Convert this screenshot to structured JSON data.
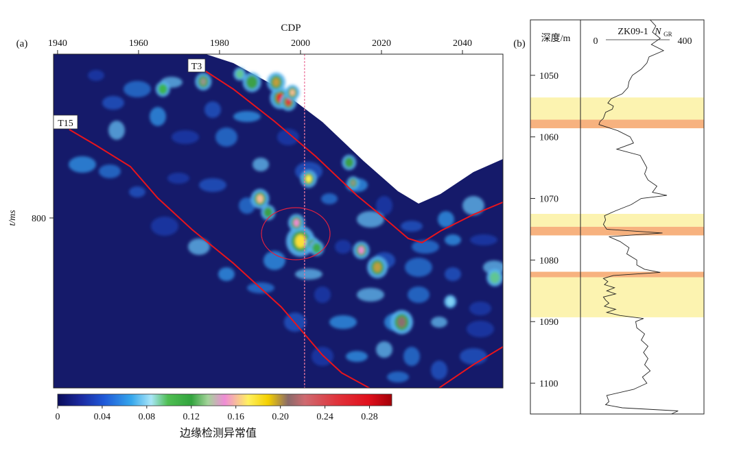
{
  "panel_a": {
    "label": "(a)",
    "top_axis_title": "CDP",
    "ylabel": "t/ms",
    "y_tick": "800",
    "colorbar_title": "边缘检测异常值",
    "horizon_labels": [
      "T3",
      "T15"
    ]
  },
  "panel_b": {
    "label": "(b)",
    "depth_label": "深度/m",
    "well_name": "ZK09-1",
    "curve_name": "N",
    "curve_sub": "GR",
    "scale_min": "0",
    "scale_max": "400"
  },
  "colors": {
    "background": "#151a6a",
    "horizon": "#e8141c",
    "marker_line": "#ec7aa0",
    "highlight_yellow": "#fcf3b0",
    "highlight_orange": "#f7b27f"
  },
  "chart_data": [
    {
      "type": "heatmap",
      "title": "",
      "xlabel": "CDP",
      "ylabel": "t/ms",
      "x_ticks": [
        1940,
        1960,
        1980,
        2000,
        2020,
        2040
      ],
      "xlim": [
        1939,
        2050
      ],
      "y_ticks": [
        800
      ],
      "marked_cdp": 2001,
      "horizons": [
        "T3",
        "T15"
      ],
      "colorbar": {
        "label": "边缘检测异常值",
        "ticks": [
          0,
          0.04,
          0.08,
          0.12,
          0.16,
          0.2,
          0.24,
          0.28
        ],
        "tick_labels": [
          "0",
          "0.04",
          "0.08",
          "0.12",
          "0.16",
          "0.20",
          "0.24",
          "0.28"
        ],
        "range": [
          0,
          0.3
        ]
      },
      "anomalies": [
        {
          "cdp": 1995,
          "v": 0.28
        },
        {
          "cdp": 1997,
          "v": 0.26
        },
        {
          "cdp": 1994,
          "v": 0.2
        },
        {
          "cdp": 1998,
          "v": 0.16
        },
        {
          "cdp": 2002,
          "v": 0.17
        },
        {
          "cdp": 2000,
          "v": 0.18
        },
        {
          "cdp": 1999,
          "v": 0.15
        },
        {
          "cdp": 2003,
          "v": 0.14
        },
        {
          "cdp": 2004,
          "v": 0.12
        },
        {
          "cdp": 1976,
          "v": 0.14
        },
        {
          "cdp": 1985,
          "v": 0.1
        },
        {
          "cdp": 1988,
          "v": 0.13
        },
        {
          "cdp": 2012,
          "v": 0.13
        },
        {
          "cdp": 2013,
          "v": 0.14
        },
        {
          "cdp": 2019,
          "v": 0.2
        },
        {
          "cdp": 2025,
          "v": 0.21
        },
        {
          "cdp": 2015,
          "v": 0.15
        },
        {
          "cdp": 1992,
          "v": 0.13
        },
        {
          "cdp": 1990,
          "v": 0.16
        },
        {
          "cdp": 1966,
          "v": 0.11
        },
        {
          "cdp": 2037,
          "v": 0.08
        },
        {
          "cdp": 2048,
          "v": 0.1
        }
      ]
    },
    {
      "type": "line",
      "title": "ZK09-1 N_GR",
      "xlabel": "N_GR",
      "ylabel": "深度/m",
      "xlim": [
        0,
        400
      ],
      "ylim": [
        1105,
        1041
      ],
      "y_ticks": [
        1050,
        1060,
        1070,
        1080,
        1090,
        1100
      ],
      "highlight_zones": [
        {
          "from": 1053.6,
          "to": 1057.2,
          "kind": "yellow"
        },
        {
          "from": 1057.2,
          "to": 1058.6,
          "kind": "orange"
        },
        {
          "from": 1072.5,
          "to": 1074.6,
          "kind": "yellow"
        },
        {
          "from": 1074.6,
          "to": 1076.0,
          "kind": "orange"
        },
        {
          "from": 1081.9,
          "to": 1082.8,
          "kind": "orange"
        },
        {
          "from": 1082.8,
          "to": 1089.3,
          "kind": "yellow"
        }
      ],
      "series": [
        {
          "depth": [
            1041.0,
            1042.0,
            1043.0,
            1044.0,
            1045.0,
            1046.0,
            1047.0,
            1048.0,
            1049.0,
            1050.0,
            1051.0,
            1052.0,
            1053.0,
            1053.8,
            1054.5,
            1055.0,
            1055.5,
            1056.0,
            1056.5,
            1057.0,
            1057.5,
            1058.0,
            1059.0,
            1060.0,
            1061.0,
            1062.0,
            1063.0,
            1064.0,
            1065.0,
            1066.0,
            1067.0,
            1068.0,
            1069.0,
            1069.5,
            1070.0,
            1071.0,
            1072.0,
            1072.8,
            1073.5,
            1074.2,
            1075.0,
            1075.6,
            1076.2,
            1077.0,
            1078.0,
            1079.0,
            1080.0,
            1080.8,
            1081.5,
            1082.0,
            1082.5,
            1083.0,
            1083.5,
            1084.0,
            1084.5,
            1085.0,
            1085.5,
            1086.0,
            1086.5,
            1087.0,
            1087.5,
            1088.0,
            1088.5,
            1089.0,
            1089.5,
            1090.0,
            1091.0,
            1092.0,
            1093.0,
            1094.0,
            1095.0,
            1096.0,
            1097.0,
            1098.0,
            1099.0,
            1100.0,
            1101.0,
            1102.0,
            1103.0,
            1103.5,
            1104.0,
            1104.5,
            1105.0
          ],
          "values": [
            245,
            270,
            255,
            290,
            250,
            305,
            240,
            230,
            205,
            165,
            150,
            145,
            120,
            70,
            55,
            80,
            75,
            45,
            40,
            35,
            20,
            15,
            100,
            155,
            170,
            95,
            200,
            215,
            230,
            220,
            235,
            275,
            255,
            320,
            205,
            160,
            90,
            40,
            45,
            35,
            50,
            300,
            60,
            110,
            150,
            140,
            185,
            185,
            220,
            290,
            80,
            35,
            55,
            40,
            85,
            50,
            90,
            35,
            45,
            60,
            40,
            90,
            50,
            110,
            215,
            180,
            185,
            220,
            205,
            235,
            215,
            235,
            220,
            245,
            210,
            230,
            170,
            50,
            60,
            45,
            120,
            370,
            340
          ]
        }
      ]
    }
  ]
}
